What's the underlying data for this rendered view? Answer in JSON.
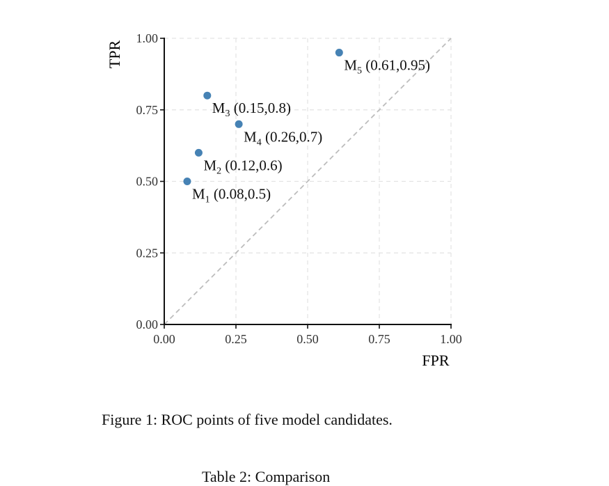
{
  "chart_data": {
    "type": "scatter",
    "title": "",
    "xlabel": "FPR",
    "ylabel": "TPR",
    "xlim": [
      0,
      1
    ],
    "ylim": [
      0,
      1
    ],
    "x_ticks": [
      "0.00",
      "0.25",
      "0.50",
      "0.75",
      "1.00"
    ],
    "y_ticks": [
      "0.00",
      "0.25",
      "0.50",
      "0.75",
      "1.00"
    ],
    "grid": true,
    "reference_line": "diagonal",
    "point_color": "#4682b4",
    "points": [
      {
        "sub": "1",
        "label": " (0.08,0.5)",
        "x": 0.08,
        "y": 0.5
      },
      {
        "sub": "2",
        "label": " (0.12,0.6)",
        "x": 0.12,
        "y": 0.6
      },
      {
        "sub": "3",
        "label": " (0.15,0.8)",
        "x": 0.15,
        "y": 0.8
      },
      {
        "sub": "4",
        "label": " (0.26,0.7)",
        "x": 0.26,
        "y": 0.7
      },
      {
        "sub": "5",
        "label": " (0.61,0.95)",
        "x": 0.61,
        "y": 0.95
      }
    ]
  },
  "caption": "Figure 1: ROC points of five model candidates.",
  "next_caption": "Table 2: Comparison"
}
